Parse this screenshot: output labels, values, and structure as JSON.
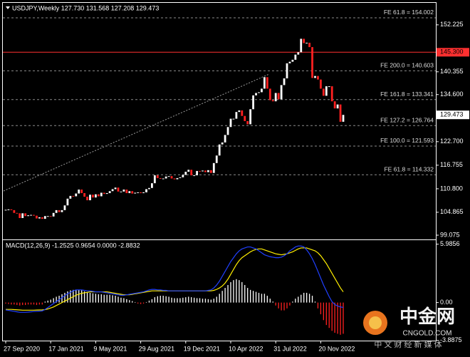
{
  "chart_data": [
    {
      "type": "candlestick",
      "title": "USDJPY,Weekly  127.730 131.568 127.208 129.473",
      "categories": [
        "27 Sep 2020",
        null,
        null,
        null,
        null,
        null,
        null,
        null,
        null,
        null,
        null,
        null,
        null,
        null,
        null,
        null,
        "17 Jan 2021",
        null,
        null,
        null,
        null,
        null,
        null,
        null,
        null,
        null,
        null,
        null,
        null,
        null,
        null,
        null,
        "9 May 2021",
        null,
        null,
        null,
        null,
        null,
        null,
        null,
        null,
        null,
        null,
        null,
        null,
        null,
        null,
        null,
        "29 Aug 2021",
        null,
        null,
        null,
        null,
        null,
        null,
        null,
        null,
        null,
        null,
        null,
        null,
        null,
        null,
        null,
        "19 Dec 2021",
        null,
        null,
        null,
        null,
        null,
        null,
        null,
        null,
        null,
        null,
        null,
        null,
        null,
        null,
        null,
        "10 Apr 2022",
        null,
        null,
        null,
        null,
        null,
        null,
        null,
        null,
        null,
        null,
        null,
        null,
        null,
        null,
        null,
        "31 Jul 2022",
        null,
        null,
        null,
        null,
        null,
        null,
        null,
        null,
        null,
        null,
        null,
        null,
        null,
        null,
        null,
        "20 Nov 2022",
        null,
        null,
        null,
        null,
        null,
        null,
        null,
        null
      ],
      "values": [
        105.4,
        105.6,
        105.4,
        104.7,
        104.6,
        103.4,
        104.6,
        103.9,
        104.1,
        104.2,
        104.0,
        103.3,
        103.6,
        103.2,
        103.9,
        103.9,
        103.8,
        104.7,
        105.4,
        104.9,
        105.4,
        106.6,
        108.3,
        109.0,
        108.9,
        109.6,
        110.6,
        109.7,
        108.8,
        107.9,
        109.3,
        108.6,
        109.4,
        108.9,
        109.8,
        109.5,
        109.7,
        110.2,
        110.7,
        111.1,
        110.1,
        110.1,
        110.6,
        109.7,
        110.2,
        109.6,
        109.8,
        109.9,
        109.7,
        109.9,
        110.7,
        111.0,
        112.2,
        114.2,
        113.5,
        113.4,
        113.4,
        113.9,
        114.0,
        113.4,
        113.2,
        113.5,
        113.7,
        114.3,
        115.1,
        115.6,
        114.2,
        114.2,
        115.3,
        115.2,
        115.4,
        115.0,
        115.5,
        114.8,
        117.3,
        119.2,
        122.0,
        122.5,
        124.4,
        126.4,
        128.5,
        128.5,
        130.2,
        130.6,
        129.2,
        127.9,
        127.1,
        130.9,
        134.4,
        135.0,
        135.2,
        136.1,
        139.0,
        136.1,
        133.2,
        132.9,
        135.0,
        133.4,
        137.0,
        138.7,
        142.5,
        142.9,
        143.4,
        144.7,
        145.3,
        148.7,
        147.6,
        147.7,
        146.6,
        138.8,
        139.3,
        138.4,
        136.1,
        134.3,
        136.7,
        136.7,
        132.9,
        131.1,
        132.1,
        127.73,
        129.473
      ],
      "up_color": "#ffffff",
      "down_color": "#ff2020",
      "ylim": [
        98.18,
        157.6
      ],
      "yticks": [
        152.225,
        140.355,
        {
          "value": 134.6,
          "label": "134.600"
        },
        {
          "value": 122.7,
          "label": "122.700"
        },
        116.755,
        {
          "value": 110.8,
          "label": "110.800"
        },
        104.865,
        99.075
      ],
      "levels": [
        {
          "label": "FE 61.8 = 154.002",
          "value": 154.002
        },
        {
          "label": "FE 200.0 = 140.603",
          "value": 140.603
        },
        {
          "label": "FE 161.8 = 133.341",
          "value": 133.341
        },
        {
          "label": "FE 127.2 = 126.764",
          "value": 126.764
        },
        {
          "label": "FE 100.0 = 121.593",
          "value": 121.593
        },
        {
          "label": "FE 61.8 = 114.332",
          "value": 114.332
        }
      ],
      "level_color": "#8c8c8c",
      "hline": {
        "value": 145.3,
        "label": "145.300",
        "color": "#ff3030"
      },
      "last_price": {
        "value": 129.473,
        "label": "129.473"
      }
    },
    {
      "type": "macd",
      "title": "MACD(12,26,9) -1.2525 0.9654 0.0000 -2.8832",
      "ylim": [
        -3.9,
        6.4
      ],
      "yticks": [
        5.9856,
        {
          "value": 0,
          "label": "0.00"
        },
        -3.8875
      ],
      "series": [
        {
          "style": "histogram",
          "color": "#ffffff",
          "negative_color": "#ff2020",
          "values": [
            -0.1,
            -0.15,
            -0.2,
            -0.2,
            -0.25,
            -0.3,
            -0.25,
            -0.25,
            -0.2,
            -0.2,
            -0.2,
            -0.25,
            -0.2,
            -0.2,
            0.1,
            0.2,
            0.3,
            0.45,
            0.6,
            0.7,
            0.85,
            1.0,
            1.15,
            1.25,
            1.3,
            1.3,
            1.3,
            1.25,
            1.15,
            1.05,
            1.0,
            0.95,
            0.9,
            0.85,
            0.85,
            0.8,
            0.8,
            0.8,
            0.75,
            0.7,
            0.6,
            0.5,
            0.45,
            0.35,
            0.25,
            0.15,
            0.05,
            -0.1,
            -0.15,
            -0.1,
            0.05,
            0.2,
            0.35,
            0.55,
            0.65,
            0.7,
            0.7,
            0.65,
            0.6,
            0.5,
            0.45,
            0.45,
            0.45,
            0.5,
            0.55,
            0.6,
            0.55,
            0.5,
            0.45,
            0.45,
            0.4,
            0.4,
            0.35,
            0.3,
            0.4,
            0.6,
            0.9,
            1.2,
            1.5,
            1.8,
            2.1,
            2.3,
            2.4,
            2.3,
            2.1,
            1.8,
            1.5,
            1.3,
            1.2,
            1.1,
            1.0,
            0.9,
            0.9,
            0.7,
            0.4,
            0.1,
            -0.3,
            -0.6,
            -0.8,
            -0.8,
            -0.6,
            -0.3,
            0.1,
            0.4,
            0.6,
            0.8,
            1.0,
            1.0,
            0.9,
            0.7,
            0.1,
            -0.6,
            -1.2,
            -1.8,
            -2.3,
            -2.6,
            -2.9,
            -3.1,
            -3.2,
            -3.3,
            -3.2
          ]
        },
        {
          "style": "line",
          "color": "#ffee00",
          "values": [
            -0.7,
            -0.7,
            -0.7,
            -0.72,
            -0.74,
            -0.76,
            -0.78,
            -0.78,
            -0.78,
            -0.78,
            -0.78,
            -0.77,
            -0.76,
            -0.75,
            -0.72,
            -0.65,
            -0.55,
            -0.45,
            -0.3,
            -0.15,
            0.0,
            0.15,
            0.3,
            0.45,
            0.6,
            0.75,
            0.85,
            0.95,
            1.0,
            1.05,
            1.1,
            1.1,
            1.1,
            1.1,
            1.1,
            1.1,
            1.1,
            1.05,
            1.0,
            0.95,
            0.9,
            0.85,
            0.8,
            0.8,
            0.8,
            0.85,
            0.9,
            0.95,
            1.0,
            1.05,
            1.1,
            1.15,
            1.2,
            1.2,
            1.2,
            1.2,
            1.2,
            1.2,
            1.2,
            1.2,
            1.2,
            1.2,
            1.2,
            1.2,
            1.2,
            1.2,
            1.2,
            1.2,
            1.2,
            1.2,
            1.2,
            1.2,
            1.2,
            1.2,
            1.25,
            1.35,
            1.5,
            1.7,
            2.0,
            2.4,
            2.9,
            3.4,
            3.9,
            4.3,
            4.6,
            4.8,
            5.0,
            5.2,
            5.35,
            5.45,
            5.5,
            5.5,
            5.4,
            5.3,
            5.2,
            5.1,
            5.0,
            4.95,
            4.9,
            4.95,
            5.0,
            5.1,
            5.2,
            5.35,
            5.5,
            5.6,
            5.6,
            5.6,
            5.5,
            5.4,
            5.3,
            5.1,
            4.8,
            4.4,
            4.0,
            3.5,
            3.0,
            2.5,
            2.0,
            1.5,
            1.1
          ]
        },
        {
          "style": "line",
          "color": "#2040ff",
          "values": [
            -0.75,
            -0.8,
            -0.85,
            -0.9,
            -0.95,
            -1.0,
            -1.0,
            -1.0,
            -0.98,
            -0.95,
            -0.92,
            -0.9,
            -0.88,
            -0.85,
            -0.7,
            -0.5,
            -0.3,
            -0.1,
            0.1,
            0.3,
            0.5,
            0.7,
            0.9,
            1.05,
            1.2,
            1.3,
            1.3,
            1.3,
            1.25,
            1.2,
            1.2,
            1.15,
            1.1,
            1.1,
            1.1,
            1.05,
            1.0,
            0.95,
            0.9,
            0.85,
            0.8,
            0.75,
            0.75,
            0.8,
            0.85,
            0.9,
            0.95,
            1.0,
            1.05,
            1.1,
            1.2,
            1.3,
            1.35,
            1.35,
            1.3,
            1.3,
            1.25,
            1.25,
            1.2,
            1.2,
            1.2,
            1.2,
            1.2,
            1.2,
            1.2,
            1.2,
            1.2,
            1.2,
            1.2,
            1.2,
            1.2,
            1.2,
            1.25,
            1.3,
            1.5,
            1.8,
            2.2,
            2.7,
            3.2,
            3.7,
            4.2,
            4.6,
            5.0,
            5.3,
            5.5,
            5.6,
            5.7,
            5.7,
            5.6,
            5.5,
            5.3,
            5.1,
            4.9,
            4.8,
            4.7,
            4.65,
            4.6,
            4.6,
            4.65,
            4.8,
            5.0,
            5.3,
            5.5,
            5.7,
            5.8,
            5.8,
            5.7,
            5.4,
            5.0,
            4.5,
            3.9,
            3.2,
            2.5,
            1.8,
            1.2,
            0.6,
            0.1,
            -0.2,
            -0.35,
            -0.45,
            -0.5
          ]
        }
      ]
    }
  ],
  "watermark": {
    "brand": "中金网",
    "site": "CNGOLD.COM",
    "tagline": "中 文 财 经 新 媒 体"
  }
}
